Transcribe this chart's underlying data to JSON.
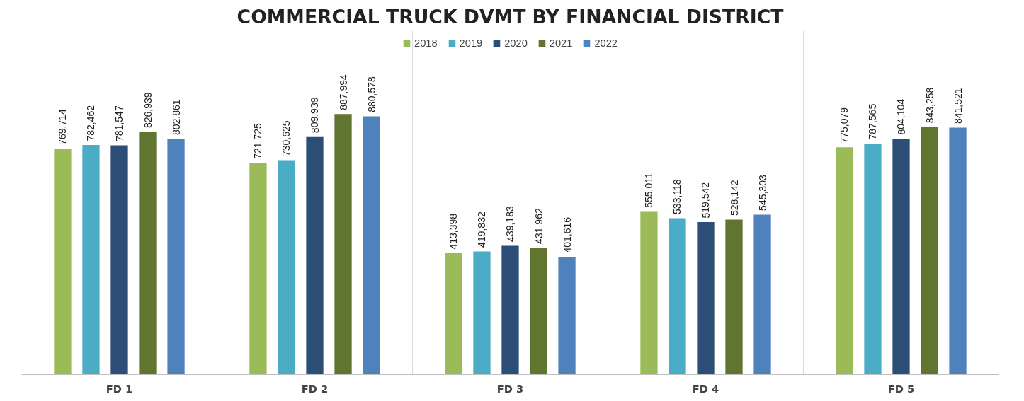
{
  "chart_data": {
    "type": "bar",
    "title": "COMMERCIAL TRUCK DVMT BY FINANCIAL DISTRICT",
    "categories": [
      "FD 1",
      "FD 2",
      "FD 3",
      "FD 4",
      "FD 5"
    ],
    "series": [
      {
        "name": "2018",
        "color": "#9bbb59",
        "values": [
          769714,
          721725,
          413398,
          555011,
          775079
        ],
        "value_labels": [
          "769,714",
          "721,725",
          "413,398",
          "555,011",
          "775,079"
        ]
      },
      {
        "name": "2019",
        "color": "#4bacc6",
        "values": [
          782462,
          730625,
          419832,
          533118,
          787565
        ],
        "value_labels": [
          "782,462",
          "730,625",
          "419,832",
          "533,118",
          "787,565"
        ]
      },
      {
        "name": "2020",
        "color": "#2c4d75",
        "values": [
          781547,
          809939,
          439183,
          519542,
          804104
        ],
        "value_labels": [
          "781,547",
          "809,939",
          "439,183",
          "519,542",
          "804,104"
        ]
      },
      {
        "name": "2021",
        "color": "#5f7530",
        "values": [
          826939,
          887994,
          431962,
          528142,
          843258
        ],
        "value_labels": [
          "826,939",
          "887,994",
          "431,962",
          "528,142",
          "843,258"
        ]
      },
      {
        "name": "2022",
        "color": "#4f81bd",
        "values": [
          802861,
          880578,
          401616,
          545303,
          841521
        ],
        "value_labels": [
          "802,861",
          "880,578",
          "401,616",
          "545,303",
          "841,521"
        ]
      }
    ],
    "legend": "top",
    "grid": "x"
  }
}
